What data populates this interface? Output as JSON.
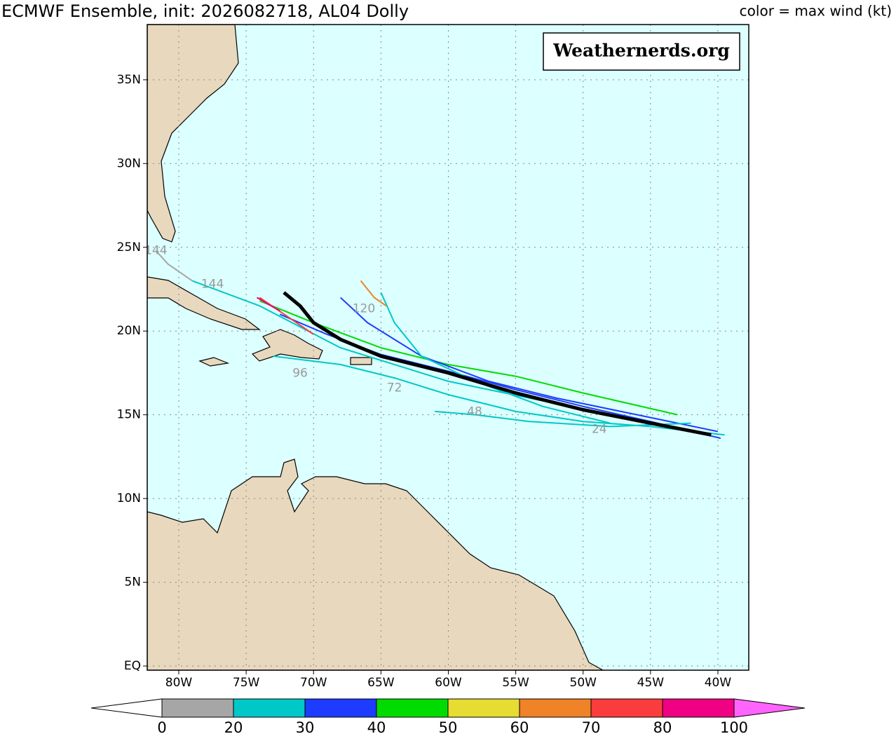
{
  "header": {
    "title": "ECMWF Ensemble, init: 2026082718, AL04 Dolly",
    "legend_title": "color = max wind (kt)"
  },
  "watermark": "Weathernerds.org",
  "map": {
    "xlim": [
      -82.34,
      -37.71
    ],
    "ylim": [
      -0.25,
      38.3
    ],
    "grid": true,
    "xticks": [
      {
        "value": -80,
        "label": "80W"
      },
      {
        "value": -75,
        "label": "75W"
      },
      {
        "value": -70,
        "label": "70W"
      },
      {
        "value": -65,
        "label": "65W"
      },
      {
        "value": -60,
        "label": "60W"
      },
      {
        "value": -55,
        "label": "55W"
      },
      {
        "value": -50,
        "label": "50W"
      },
      {
        "value": -45,
        "label": "45W"
      },
      {
        "value": -40,
        "label": "40W"
      }
    ],
    "yticks": [
      {
        "value": 0,
        "label": "EQ"
      },
      {
        "value": 5,
        "label": "5N"
      },
      {
        "value": 10,
        "label": "10N"
      },
      {
        "value": 15,
        "label": "15N"
      },
      {
        "value": 20,
        "label": "20N"
      },
      {
        "value": 25,
        "label": "25N"
      },
      {
        "value": 30,
        "label": "30N"
      },
      {
        "value": 35,
        "label": "35N"
      }
    ],
    "members": [
      {
        "color": "#00c8c8",
        "lon": [
          -39.5,
          -45,
          -50,
          -55,
          -60,
          -64,
          -68,
          -73
        ],
        "lat": [
          13.8,
          14.3,
          14.6,
          15.2,
          16.2,
          17.2,
          18.0,
          18.5
        ]
      },
      {
        "color": "#1e3cff",
        "lon": [
          -39.8,
          -45,
          -50,
          -55,
          -60,
          -65,
          -69,
          -72.5
        ],
        "lat": [
          13.6,
          14.6,
          15.5,
          16.5,
          17.6,
          18.6,
          19.8,
          21.0
        ]
      },
      {
        "color": "#00dc00",
        "lon": [
          -43,
          -50,
          -55,
          -60,
          -65,
          -70,
          -74
        ],
        "lat": [
          15.0,
          16.3,
          17.3,
          18.0,
          19.0,
          20.5,
          21.8
        ]
      },
      {
        "color": "#1e3cff",
        "lon": [
          -40,
          -46,
          -52,
          -57,
          -62,
          -66,
          -68
        ],
        "lat": [
          14.0,
          15.0,
          16.0,
          17.0,
          18.5,
          20.5,
          22.0
        ]
      },
      {
        "color": "#00c8c8",
        "lon": [
          -48,
          -53,
          -58,
          -62,
          -64,
          -65
        ],
        "lat": [
          14.5,
          15.5,
          17.0,
          18.5,
          20.5,
          22.3
        ]
      },
      {
        "color": "#f08228",
        "lon": [
          -66.5,
          -65.5,
          -64.6
        ],
        "lat": [
          23.0,
          22.0,
          21.5
        ]
      },
      {
        "color": "#00c8c8",
        "lon": [
          -42,
          -48,
          -54,
          -58,
          -61
        ],
        "lat": [
          14.5,
          14.3,
          14.6,
          15.0,
          15.2
        ]
      },
      {
        "color": "#00c8c8",
        "lon": [
          -51,
          -60,
          -68,
          -74,
          -79
        ],
        "lat": [
          15.5,
          17.0,
          19.0,
          21.5,
          23.0
        ]
      },
      {
        "color": "#a6a6a6",
        "lon": [
          -79,
          -80.8,
          -81.7
        ],
        "lat": [
          23.0,
          24.0,
          24.8
        ]
      },
      {
        "color": "#fa3c3c",
        "lon": [
          -70,
          -74
        ],
        "lat": [
          19.8,
          22.0
        ]
      },
      {
        "color": "#f00082",
        "lon": [
          -74.2,
          -72.5
        ],
        "lat": [
          22.0,
          21.2
        ]
      }
    ],
    "mean_track": {
      "color": "#000000",
      "lon": [
        -40.5,
        -45,
        -50,
        -55,
        -60,
        -65,
        -68,
        -70,
        -71,
        -72.2
      ],
      "lat": [
        13.8,
        14.5,
        15.3,
        16.3,
        17.5,
        18.5,
        19.5,
        20.5,
        21.5,
        22.3
      ]
    },
    "hour_labels": [
      {
        "text": "144",
        "lon": -81.7,
        "lat": 24.8
      },
      {
        "text": "144",
        "lon": -77.5,
        "lat": 22.8
      },
      {
        "text": "120",
        "lon": -66.27,
        "lat": 21.33
      },
      {
        "text": "96",
        "lon": -71.0,
        "lat": 17.48
      },
      {
        "text": "72",
        "lon": -64.0,
        "lat": 16.6
      },
      {
        "text": "48",
        "lon": -58.05,
        "lat": 15.18
      },
      {
        "text": "24",
        "lon": -48.8,
        "lat": 14.13
      }
    ]
  },
  "colorbar": {
    "ticks": [
      0,
      20,
      30,
      40,
      50,
      60,
      70,
      80,
      100
    ],
    "colors": [
      "#a6a6a6",
      "#00c8c8",
      "#1e3cff",
      "#00dc00",
      "#e6dc32",
      "#f08228",
      "#fa3c3c",
      "#f00082"
    ],
    "under_color": "#ffffff",
    "over_color": "#ff64ff"
  }
}
